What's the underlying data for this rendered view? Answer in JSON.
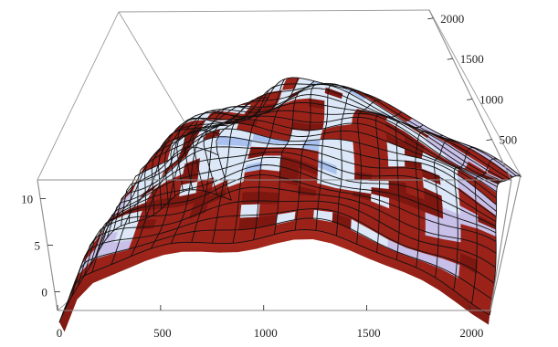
{
  "chart_data": {
    "type": "surface3d",
    "title": "",
    "xlabel": "",
    "ylabel": "",
    "zlabel": "",
    "x_ticks": [
      0,
      500,
      1000,
      1500,
      2000
    ],
    "y_ticks": [
      500,
      1000,
      1500,
      2000
    ],
    "z_ticks": [
      0,
      5,
      10
    ],
    "xlim": [
      0,
      2100
    ],
    "ylim": [
      0,
      2100
    ],
    "zlim": [
      -2,
      12
    ],
    "mesh": true,
    "box": true,
    "colors": {
      "surface_top_light": "#dce8f7",
      "surface_top_mid": "#a9c1ee",
      "surface_top_shadow": "#c8c0e8",
      "surface_under": "#9b2219",
      "surface_under_dark": "#7e1710",
      "highlight_peach": "#f2d6c4"
    },
    "x_ticks_label": [
      "0",
      "500",
      "1000",
      "1500",
      "2000"
    ],
    "y_ticks_label": [
      "500",
      "1000",
      "1500",
      "2000"
    ],
    "z_ticks_label": [
      "0",
      "5",
      "10"
    ]
  }
}
